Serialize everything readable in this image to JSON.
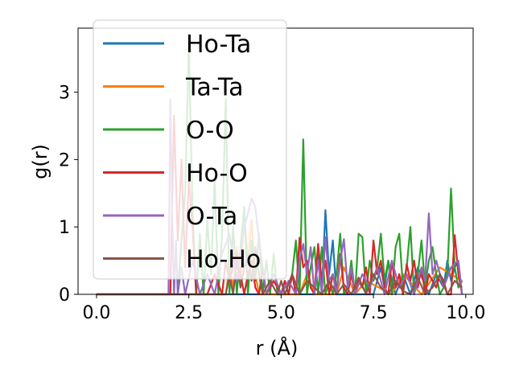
{
  "chart_data": {
    "type": "line",
    "xlabel": "r (Å)",
    "ylabel": "g(r)",
    "xlim": [
      -0.5,
      10.2
    ],
    "ylim": [
      0,
      3.95
    ],
    "xticks": [
      0.0,
      2.5,
      5.0,
      7.5,
      10.0
    ],
    "xtick_labels": [
      "0.0",
      "2.5",
      "5.0",
      "7.5",
      "10.0"
    ],
    "yticks": [
      0,
      1,
      2,
      3
    ],
    "ytick_labels": [
      "0",
      "1",
      "2",
      "3"
    ],
    "grid": false,
    "legend_position": "upper-left",
    "series": [
      {
        "name": "Ho-Ta",
        "color": "#1f77b4",
        "x": [
          0.0,
          5.9,
          6.0,
          6.1,
          6.2,
          6.3,
          6.4,
          6.5,
          7.5,
          7.7,
          7.8,
          7.9,
          8.0,
          8.1,
          8.3,
          8.5,
          8.7,
          9.0,
          9.2,
          9.4,
          9.5,
          9.6,
          9.7,
          9.8,
          9.9
        ],
        "y": [
          0.0,
          0.0,
          0.6,
          0.0,
          1.25,
          0.3,
          0.8,
          0.0,
          0.0,
          0.4,
          0.1,
          0.5,
          0.2,
          0.0,
          0.3,
          0.0,
          0.4,
          0.0,
          0.3,
          0.1,
          0.5,
          0.2,
          0.4,
          0.5,
          0.0
        ]
      },
      {
        "name": "Ta-Ta",
        "color": "#ff7f0e",
        "x": [
          0.0,
          3.5,
          3.6,
          3.7,
          3.8,
          3.9,
          4.0,
          4.1,
          4.2,
          4.3,
          4.4,
          5.5,
          5.7,
          5.9,
          6.5,
          6.7,
          7.0,
          7.3,
          8.0,
          8.3,
          8.8,
          9.3,
          9.9
        ],
        "y": [
          0.0,
          0.0,
          0.4,
          0.1,
          0.7,
          0.2,
          1.2,
          0.5,
          1.1,
          0.3,
          0.0,
          0.0,
          0.3,
          0.0,
          0.0,
          0.4,
          0.0,
          0.2,
          0.0,
          0.3,
          0.0,
          0.4,
          0.2
        ]
      },
      {
        "name": "O-O",
        "color": "#2ca02c",
        "x": [
          0.0,
          2.2,
          2.3,
          2.4,
          2.5,
          2.6,
          2.7,
          2.8,
          2.9,
          3.0,
          3.1,
          3.2,
          3.3,
          3.4,
          3.5,
          3.6,
          3.7,
          3.8,
          3.9,
          4.0,
          4.1,
          4.2,
          4.3,
          4.4,
          4.5,
          4.6,
          4.7,
          4.8,
          4.9,
          5.0,
          5.1,
          5.2,
          5.3,
          5.4,
          5.5,
          5.6,
          5.7,
          5.8,
          5.9,
          6.0,
          6.1,
          6.2,
          6.3,
          6.4,
          6.5,
          6.6,
          6.7,
          6.8,
          6.9,
          7.0,
          7.1,
          7.2,
          7.3,
          7.4,
          7.5,
          7.6,
          7.7,
          7.8,
          7.9,
          8.0,
          8.1,
          8.2,
          8.3,
          8.4,
          8.5,
          8.6,
          8.7,
          8.8,
          8.9,
          9.0,
          9.1,
          9.2,
          9.3,
          9.4,
          9.5,
          9.6,
          9.7,
          9.8,
          9.9
        ],
        "y": [
          0.0,
          0.0,
          0.8,
          1.5,
          3.7,
          1.2,
          0.0,
          0.9,
          0.0,
          1.1,
          0.3,
          1.7,
          0.0,
          0.9,
          2.9,
          0.0,
          1.0,
          0.0,
          0.7,
          1.3,
          0.0,
          0.8,
          0.2,
          0.9,
          0.0,
          0.5,
          0.0,
          0.6,
          0.0,
          0.0,
          0.2,
          0.0,
          0.3,
          0.8,
          0.0,
          2.3,
          0.0,
          0.4,
          0.7,
          0.0,
          0.7,
          0.0,
          0.2,
          0.0,
          0.3,
          0.9,
          0.0,
          0.1,
          0.5,
          0.0,
          0.9,
          0.85,
          0.0,
          0.5,
          0.2,
          0.4,
          0.9,
          0.2,
          0.5,
          0.0,
          0.7,
          0.9,
          0.1,
          0.4,
          1.0,
          0.0,
          0.3,
          0.8,
          0.1,
          0.5,
          0.7,
          0.3,
          0.0,
          0.1,
          0.3,
          1.57,
          0.4,
          0.1,
          0.2
        ]
      },
      {
        "name": "Ho-O",
        "color": "#d62728",
        "x": [
          0.0,
          2.0,
          2.1,
          2.2,
          2.3,
          2.4,
          2.5,
          2.6,
          2.7,
          3.0,
          3.2,
          3.4,
          3.5,
          3.6,
          3.8,
          4.0,
          4.1,
          4.2,
          4.3,
          4.4,
          4.5,
          4.6,
          4.8,
          5.0,
          5.1,
          5.2,
          5.3,
          5.4,
          5.5,
          5.6,
          5.7,
          5.8,
          5.9,
          6.0,
          6.1,
          6.2,
          6.3,
          6.4,
          6.5,
          6.6,
          6.7,
          6.8,
          6.9,
          7.0,
          7.1,
          7.2,
          7.3,
          7.4,
          7.5,
          7.6,
          7.7,
          7.8,
          7.9,
          8.0,
          8.1,
          8.2,
          8.3,
          8.4,
          8.5,
          8.6,
          8.7,
          8.8,
          8.9,
          9.0,
          9.1,
          9.2,
          9.3,
          9.4,
          9.5,
          9.6,
          9.7,
          9.8,
          9.9
        ],
        "y": [
          0.0,
          0.0,
          2.65,
          0.8,
          2.0,
          0.4,
          1.7,
          1.0,
          0.0,
          0.0,
          0.3,
          0.0,
          0.5,
          0.2,
          0.6,
          0.0,
          0.3,
          0.5,
          0.1,
          0.0,
          0.4,
          0.0,
          0.2,
          0.0,
          0.2,
          0.0,
          0.3,
          0.0,
          0.84,
          0.4,
          0.5,
          0.1,
          0.0,
          0.75,
          0.2,
          0.5,
          0.0,
          0.3,
          0.0,
          0.6,
          0.1,
          0.0,
          0.3,
          0.0,
          0.2,
          0.1,
          0.4,
          0.0,
          0.8,
          0.3,
          0.5,
          0.1,
          0.0,
          0.5,
          0.1,
          0.3,
          0.0,
          0.45,
          0.2,
          0.5,
          0.1,
          0.4,
          0.0,
          0.3,
          0.2,
          0.1,
          0.3,
          0.2,
          0.0,
          0.0,
          0.88,
          0.3,
          0.0
        ]
      },
      {
        "name": "O-Ta",
        "color": "#9467bd",
        "x": [
          0.0,
          1.95,
          2.0,
          2.05,
          2.1,
          2.15,
          2.2,
          2.3,
          2.4,
          2.6,
          2.8,
          3.0,
          3.2,
          3.4,
          3.6,
          3.8,
          4.0,
          4.1,
          4.2,
          4.3,
          4.4,
          4.5,
          4.6,
          4.8,
          5.0,
          5.2,
          5.4,
          5.5,
          5.6,
          5.7,
          5.8,
          5.9,
          6.0,
          6.1,
          6.2,
          6.3,
          6.4,
          6.5,
          6.6,
          6.7,
          6.8,
          6.9,
          7.0,
          7.2,
          7.4,
          7.6,
          7.8,
          8.0,
          8.2,
          8.4,
          8.6,
          8.8,
          8.9,
          9.0,
          9.1,
          9.2,
          9.4,
          9.6,
          9.8,
          9.9
        ],
        "y": [
          0.0,
          0.0,
          2.9,
          1.2,
          0.0,
          0.8,
          0.0,
          0.4,
          0.0,
          0.5,
          0.0,
          0.3,
          0.0,
          0.6,
          0.9,
          0.2,
          1.0,
          1.2,
          1.42,
          1.3,
          0.8,
          0.4,
          0.0,
          0.3,
          0.0,
          0.2,
          0.0,
          0.5,
          0.75,
          0.3,
          0.7,
          0.0,
          0.5,
          0.0,
          0.85,
          0.2,
          0.3,
          0.0,
          0.5,
          0.82,
          0.1,
          0.4,
          0.0,
          0.3,
          0.1,
          0.4,
          0.0,
          0.5,
          0.1,
          0.3,
          0.0,
          0.4,
          0.2,
          1.2,
          0.3,
          0.5,
          0.1,
          0.4,
          0.5,
          0.0
        ]
      },
      {
        "name": "Ho-Ho",
        "color": "#8c564b",
        "x": [
          0.0,
          3.5,
          3.6,
          3.7,
          3.8,
          3.9,
          4.0,
          4.1,
          4.2,
          4.3,
          4.4,
          4.5,
          4.7,
          4.9,
          5.0,
          5.1,
          5.3,
          5.5,
          5.7,
          5.9,
          6.1,
          6.3,
          6.5,
          6.7,
          6.9,
          7.1,
          7.3,
          7.5,
          7.7,
          7.9,
          8.1,
          8.3,
          8.5,
          8.7,
          8.9,
          9.1,
          9.3,
          9.5,
          9.7,
          9.9
        ],
        "y": [
          0.0,
          0.0,
          0.3,
          0.0,
          0.5,
          0.1,
          0.4,
          0.6,
          0.2,
          0.7,
          0.3,
          0.0,
          0.2,
          0.0,
          0.2,
          0.0,
          0.3,
          0.0,
          0.2,
          0.1,
          0.0,
          0.2,
          0.0,
          0.15,
          0.0,
          0.25,
          0.0,
          0.3,
          0.1,
          0.0,
          0.2,
          0.05,
          0.0,
          0.25,
          0.0,
          0.1,
          0.3,
          0.0,
          0.2,
          0.1
        ]
      }
    ]
  }
}
